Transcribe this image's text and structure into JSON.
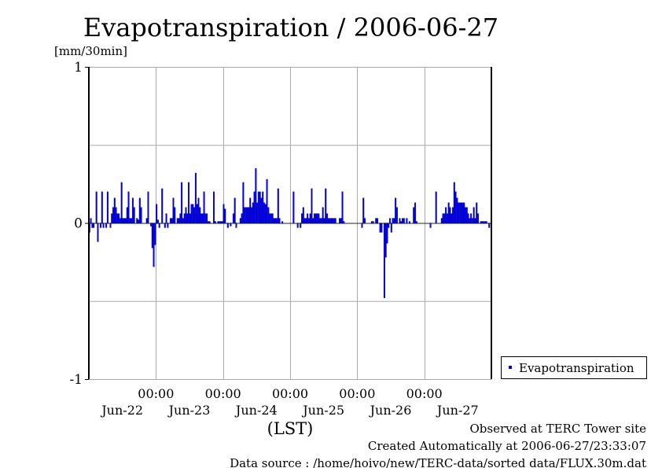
{
  "chart_data": {
    "type": "bar",
    "title": "Evapotranspiration / 2006-06-27",
    "ylabel": "[mm/30min]",
    "xlabel": "(LST)",
    "ylim": [
      -1,
      1
    ],
    "yticks": [
      "1",
      "0",
      "-1"
    ],
    "ytick_values": [
      1,
      0,
      -1
    ],
    "xtick_labels": [
      "00:00",
      "00:00",
      "00:00",
      "00:00",
      "00:00"
    ],
    "day_labels": [
      "Jun-22",
      "Jun-23",
      "Jun-24",
      "Jun-25",
      "Jun-26",
      "Jun-27"
    ],
    "interval": "30min",
    "grid": true,
    "legend": {
      "position": "right",
      "entries": [
        "Evapotranspiration"
      ]
    },
    "series": [
      {
        "name": "Evapotranspiration",
        "color": "#0000ee",
        "values": [
          -0.06,
          0.03,
          -0.03,
          -0.03,
          0,
          0.2,
          -0.12,
          0,
          -0.03,
          0.2,
          -0.03,
          0,
          -0.03,
          0.2,
          0,
          -0.03,
          0.06,
          0.1,
          0.16,
          0.1,
          0.06,
          0.06,
          0.03,
          0.26,
          0.03,
          0.03,
          0.03,
          0.1,
          0.2,
          0.03,
          0.03,
          0.16,
          0.1,
          0,
          0.03,
          0.02,
          0.16,
          0.1,
          0,
          0,
          0,
          0.03,
          0.2,
          0,
          -0.02,
          -0.16,
          -0.28,
          -0.14,
          0.12,
          0.02,
          -0.03,
          0,
          0.22,
          0,
          -0.03,
          0.06,
          -0.03,
          0,
          0.03,
          0.03,
          0.16,
          0.1,
          0,
          0.03,
          0.03,
          0.06,
          0.26,
          0.03,
          0.06,
          0.1,
          0.06,
          0.26,
          0.06,
          0.12,
          0.12,
          0.1,
          0.32,
          0.12,
          0.16,
          0.1,
          0.06,
          0.06,
          0.2,
          0.06,
          0.06,
          0.01,
          0.01,
          0,
          0,
          0.2,
          0.01,
          0,
          0.01,
          0.01,
          0.01,
          0.01,
          0.12,
          0.09,
          0,
          -0.03,
          0,
          -0.02,
          0,
          0.06,
          0.16,
          -0.03,
          0,
          0,
          0.03,
          0.06,
          0.26,
          0.1,
          0.1,
          0.1,
          0.1,
          0.16,
          0.1,
          0.13,
          0.2,
          0.35,
          0.13,
          0.2,
          0.2,
          0.16,
          0.2,
          0.13,
          0.12,
          0.28,
          0.1,
          0.06,
          0.06,
          0.06,
          0.03,
          0.03,
          0.03,
          0.22,
          0.03,
          0,
          0.01,
          0,
          0,
          0,
          0,
          0,
          0,
          0,
          0.2,
          0,
          0,
          -0.03,
          0,
          -0.03,
          0.06,
          0.1,
          0.03,
          0.03,
          0.06,
          0.03,
          0.06,
          0.22,
          0.03,
          0.06,
          0.06,
          0.06,
          0.06,
          0.03,
          0.03,
          0.1,
          0.03,
          0.22,
          0.06,
          0.03,
          0.03,
          0.03,
          0.03,
          0.03,
          0.03,
          0,
          0,
          0.03,
          0.03,
          0.2,
          0.01,
          0,
          0,
          0,
          0,
          0,
          0,
          0,
          0,
          0,
          0,
          0,
          0,
          -0.03,
          0.16,
          0.03,
          0,
          0,
          0,
          0,
          0.01,
          0.01,
          0,
          0.03,
          0.03,
          0,
          -0.06,
          -0.06,
          0,
          -0.48,
          -0.22,
          -0.13,
          -0.03,
          0.03,
          -0.06,
          0.03,
          0.03,
          0.16,
          0.1,
          0,
          0.03,
          0.01,
          0.03,
          0.03,
          0,
          0.03,
          0,
          0.01,
          0,
          0,
          0.1,
          0.13,
          0.01,
          0,
          0,
          0,
          0,
          0,
          0,
          0,
          0,
          0,
          -0.03,
          0,
          0,
          0,
          0.2,
          0,
          0,
          0,
          0.03,
          0.06,
          0.06,
          0.1,
          0.06,
          0.13,
          0.1,
          0.06,
          0.1,
          0.26,
          0.2,
          0.16,
          0.13,
          0.13,
          0.13,
          0.13,
          0.13,
          0.1,
          0.1,
          0.06,
          0.03,
          0.06,
          0.03,
          0.1,
          0.03,
          0.13,
          0.06,
          0,
          0.01,
          0.01,
          0.01,
          0.01,
          0.01,
          0,
          -0.03,
          0
        ]
      }
    ]
  },
  "footer": {
    "observed": "Observed at TERC Tower site",
    "created": "Created Automatically at 2006-06-27/23:33:07",
    "source": "Data source : /home/hoivo/new/TERC-data/sorted  data/FLUX.30m.dat"
  }
}
